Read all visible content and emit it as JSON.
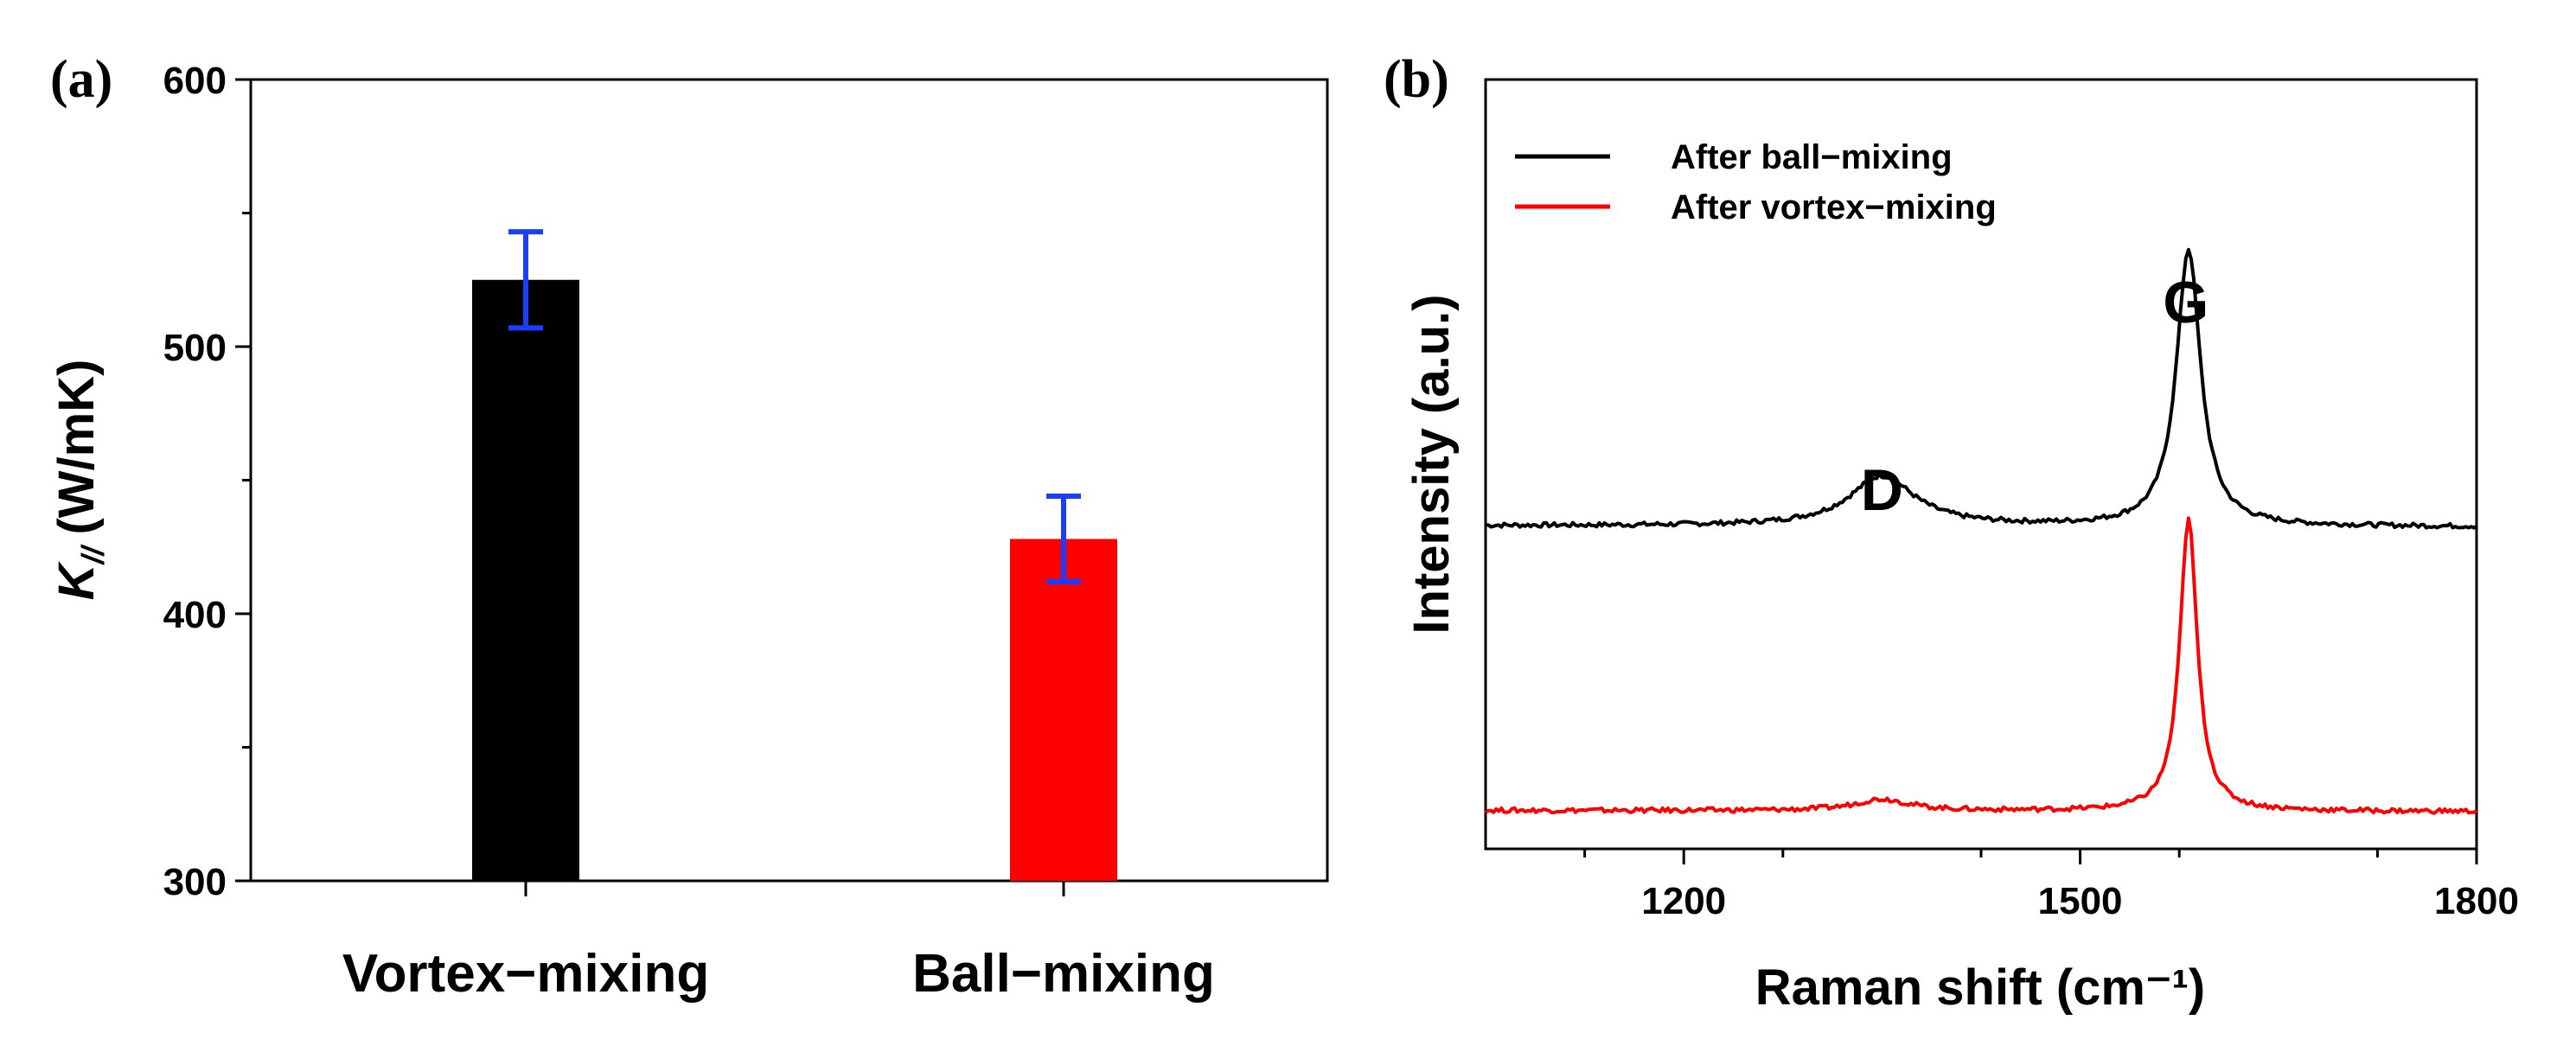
{
  "chart_data": [
    {
      "panel": "(a)",
      "type": "bar",
      "ylabel_main": "K",
      "ylabel_sub": "//",
      "ylabel_unit": "(W/mK)",
      "ylim": [
        300,
        600
      ],
      "yticks": [
        300,
        400,
        500,
        600
      ],
      "categories": [
        "Vortex−mixing",
        "Ball−mixing"
      ],
      "values": [
        525,
        428
      ],
      "errors": [
        18,
        16
      ],
      "colors": [
        "#000000",
        "#ff0000"
      ],
      "error_color": "#1a3dff"
    },
    {
      "panel": "(b)",
      "type": "line",
      "xlabel": "Raman shift (cm⁻¹)",
      "ylabel": "Intensity (a.u.)",
      "xlim": [
        1050,
        1800
      ],
      "xticks": [
        1200,
        1500,
        1800
      ],
      "peak_labels": [
        {
          "text": "D",
          "x": 1350
        },
        {
          "text": "G",
          "x": 1580
        }
      ],
      "series": [
        {
          "name": "After ball−mixing",
          "color": "#000000",
          "baseline": 0.42,
          "peaks": [
            {
              "center": 1350,
              "height": 0.065,
              "width": 30
            },
            {
              "center": 1582,
              "height": 0.36,
              "width": 11
            }
          ]
        },
        {
          "name": "After vortex−mixing",
          "color": "#ff0000",
          "baseline": 0.05,
          "peaks": [
            {
              "center": 1350,
              "height": 0.015,
              "width": 25
            },
            {
              "center": 1582,
              "height": 0.38,
              "width": 8
            }
          ]
        }
      ]
    }
  ]
}
